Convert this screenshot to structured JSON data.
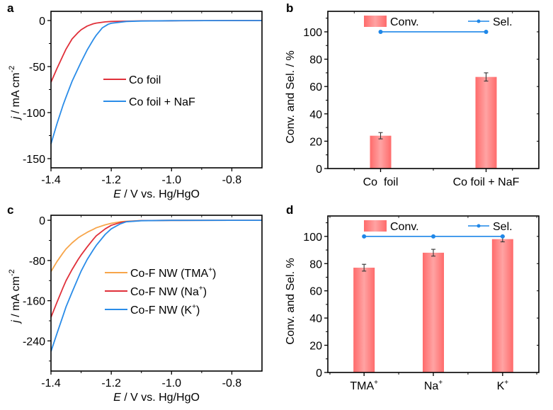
{
  "figure": {
    "panels": [
      "a",
      "b",
      "c",
      "d"
    ]
  },
  "chart_data": [
    {
      "panel": "a",
      "type": "line",
      "title": "",
      "xlabel_italic": "E",
      "xlabel_rest": " / V vs. Hg/HgO",
      "ylabel_italic": "j",
      "ylabel_rest": " / mA cm",
      "ylabel_sup": "-2",
      "xlim": [
        -1.4,
        -0.7
      ],
      "ylim": [
        -160,
        10
      ],
      "xticks": [
        -1.4,
        -1.2,
        -1.0,
        -0.8
      ],
      "xtick_labels": [
        "-1.4",
        "-1.2",
        "-1.0",
        "-0.8"
      ],
      "yticks": [
        0,
        -50,
        -100,
        -150
      ],
      "ytick_labels": [
        "0",
        "-50",
        "-100",
        "-150"
      ],
      "grid": false,
      "legend_position": "center",
      "series": [
        {
          "name": "Co foil",
          "color": "#e0303a",
          "x": [
            -1.4,
            -1.38,
            -1.36,
            -1.35,
            -1.33,
            -1.31,
            -1.3,
            -1.28,
            -1.26,
            -1.25,
            -1.22,
            -1.2,
            -1.1,
            -1.0,
            -0.8,
            -0.7
          ],
          "y": [
            -67,
            -52,
            -38,
            -31,
            -20,
            -13,
            -10,
            -6,
            -3.5,
            -2.8,
            -1.5,
            -1,
            -0.4,
            -0.2,
            0,
            0
          ]
        },
        {
          "name": "Co foil + NaF",
          "color": "#2a8ce8",
          "x": [
            -1.4,
            -1.38,
            -1.36,
            -1.35,
            -1.33,
            -1.31,
            -1.3,
            -1.28,
            -1.26,
            -1.25,
            -1.23,
            -1.21,
            -1.2,
            -1.15,
            -1.1,
            -1.0,
            -0.8,
            -0.7
          ],
          "y": [
            -134,
            -112,
            -92,
            -83,
            -66,
            -52,
            -45,
            -32,
            -21,
            -16,
            -8,
            -4,
            -3,
            -1,
            -0.5,
            -0.2,
            0,
            0
          ]
        }
      ]
    },
    {
      "panel": "b",
      "type": "bar",
      "title": "",
      "xlabel": "",
      "ylabel": "Conv. and Sel. / %",
      "ylim": [
        0,
        115
      ],
      "yticks": [
        0,
        20,
        40,
        60,
        80,
        100
      ],
      "ytick_labels": [
        "0",
        "20",
        "40",
        "60",
        "80",
        "100"
      ],
      "categories": [
        "Co  foil",
        "Co foil + NaF"
      ],
      "grid": false,
      "legend_position": "top",
      "series": [
        {
          "name": "Conv.",
          "kind": "bar",
          "color": "#ff6b6b",
          "values": [
            24,
            67
          ],
          "errors": [
            2.3,
            3.0
          ]
        },
        {
          "name": "Sel.",
          "kind": "line",
          "color": "#1f87e8",
          "values": [
            100,
            100
          ]
        }
      ]
    },
    {
      "panel": "c",
      "type": "line",
      "title": "",
      "xlabel_italic": "E",
      "xlabel_rest": " / V vs. Hg/HgO",
      "ylabel_italic": "j",
      "ylabel_rest": " / mA cm",
      "ylabel_sup": "-2",
      "xlim": [
        -1.4,
        -0.7
      ],
      "ylim": [
        -300,
        10
      ],
      "xticks": [
        -1.4,
        -1.2,
        -1.0,
        -0.8
      ],
      "xtick_labels": [
        "-1.4",
        "-1.2",
        "-1.0",
        "-0.8"
      ],
      "yticks": [
        0,
        -80,
        -160,
        -240
      ],
      "ytick_labels": [
        "0",
        "-80",
        "-160",
        "-240"
      ],
      "grid": false,
      "legend_position": "center-right",
      "series": [
        {
          "name": "Co-F NW (TMA",
          "name_sup": "+",
          "name_tail": ")",
          "color": "#f7a54a",
          "x": [
            -1.4,
            -1.38,
            -1.36,
            -1.35,
            -1.33,
            -1.31,
            -1.3,
            -1.28,
            -1.26,
            -1.25,
            -1.22,
            -1.2,
            -1.17,
            -1.15,
            -1.1,
            -1.0,
            -0.8,
            -0.7
          ],
          "y": [
            -102,
            -82,
            -65,
            -57,
            -45,
            -35,
            -31,
            -24,
            -18,
            -15,
            -9,
            -6,
            -3,
            -2,
            -0.6,
            -0.2,
            0,
            0
          ]
        },
        {
          "name": "Co-F NW (Na",
          "name_sup": "+",
          "name_tail": ")",
          "color": "#e0303a",
          "x": [
            -1.4,
            -1.38,
            -1.36,
            -1.35,
            -1.33,
            -1.31,
            -1.3,
            -1.28,
            -1.26,
            -1.25,
            -1.22,
            -1.2,
            -1.17,
            -1.15,
            -1.1,
            -1.0,
            -0.8,
            -0.7
          ],
          "y": [
            -193,
            -163,
            -134,
            -120,
            -98,
            -78,
            -69,
            -53,
            -38,
            -31,
            -17,
            -10,
            -4.5,
            -2.5,
            -0.6,
            -0.2,
            0,
            0
          ]
        },
        {
          "name": "Co-F NW (K",
          "name_sup": "+",
          "name_tail": ")",
          "color": "#2a8ce8",
          "x": [
            -1.4,
            -1.38,
            -1.36,
            -1.35,
            -1.33,
            -1.31,
            -1.3,
            -1.28,
            -1.26,
            -1.25,
            -1.22,
            -1.2,
            -1.17,
            -1.15,
            -1.1,
            -1.0,
            -0.8,
            -0.7
          ],
          "y": [
            -261,
            -225,
            -190,
            -172,
            -143,
            -115,
            -101,
            -78,
            -59,
            -50,
            -28,
            -17,
            -7,
            -3,
            -0.8,
            -0.2,
            0,
            0
          ]
        }
      ]
    },
    {
      "panel": "d",
      "type": "bar",
      "title": "",
      "xlabel": "",
      "ylabel": "Conv. and Sel. %",
      "ylim": [
        0,
        115
      ],
      "yticks": [
        0,
        20,
        40,
        60,
        80,
        100
      ],
      "ytick_labels": [
        "0",
        "20",
        "40",
        "60",
        "80",
        "100"
      ],
      "categories": [
        "TMA",
        "Na",
        "K"
      ],
      "category_sups": [
        "+",
        "+",
        "+"
      ],
      "grid": false,
      "legend_position": "top",
      "series": [
        {
          "name": "Conv.",
          "kind": "bar",
          "color": "#ff6b6b",
          "values": [
            77,
            88,
            98
          ],
          "errors": [
            2.5,
            2.5,
            2.0
          ]
        },
        {
          "name": "Sel.",
          "kind": "line",
          "color": "#1f87e8",
          "values": [
            100,
            100,
            100
          ]
        }
      ]
    }
  ]
}
